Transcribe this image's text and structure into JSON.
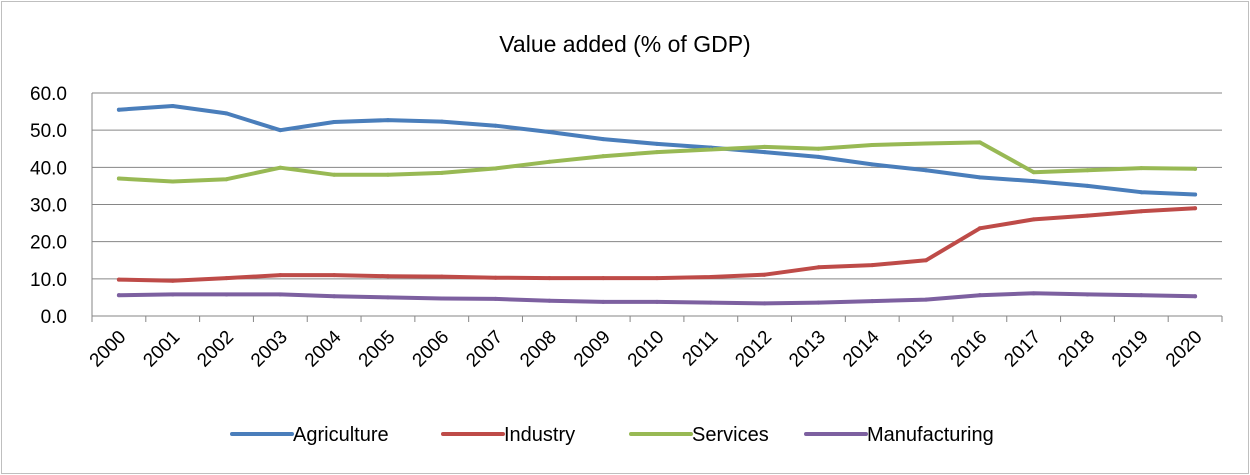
{
  "chart_data": {
    "type": "line",
    "title": "Value added (% of GDP)",
    "xlabel": "",
    "ylabel": "",
    "ylim": [
      0,
      60
    ],
    "yticks": [
      "0.0",
      "10.0",
      "20.0",
      "30.0",
      "40.0",
      "50.0",
      "60.0"
    ],
    "grid": true,
    "legend_position": "bottom",
    "categories": [
      "2000",
      "2001",
      "2002",
      "2003",
      "2004",
      "2005",
      "2006",
      "2007",
      "2008",
      "2009",
      "2010",
      "2011",
      "2012",
      "2013",
      "2014",
      "2015",
      "2016",
      "2017",
      "2018",
      "2019",
      "2020"
    ],
    "series": [
      {
        "name": "Agriculture",
        "color": "#4a7ebb",
        "values": [
          55.5,
          56.5,
          54.5,
          50.0,
          52.2,
          52.7,
          52.3,
          51.2,
          49.5,
          47.6,
          46.3,
          45.3,
          44.1,
          42.8,
          40.8,
          39.2,
          37.3,
          36.3,
          35.0,
          33.3,
          32.7
        ]
      },
      {
        "name": "Industry",
        "color": "#be4b48",
        "values": [
          9.8,
          9.5,
          10.2,
          11.0,
          11.0,
          10.7,
          10.6,
          10.3,
          10.2,
          10.2,
          10.2,
          10.5,
          11.1,
          13.1,
          13.7,
          15.0,
          23.6,
          26.0,
          27.0,
          28.2,
          29.0
        ]
      },
      {
        "name": "Services",
        "color": "#98b954",
        "values": [
          37.0,
          36.2,
          36.8,
          39.9,
          38.0,
          38.0,
          38.5,
          39.7,
          41.5,
          43.0,
          44.1,
          44.8,
          45.5,
          45.0,
          46.0,
          46.4,
          46.7,
          38.7,
          39.2,
          39.8,
          39.6
        ]
      },
      {
        "name": "Manufacturing",
        "color": "#7d60a0",
        "values": [
          5.6,
          5.8,
          5.8,
          5.8,
          5.3,
          5.0,
          4.7,
          4.6,
          4.1,
          3.8,
          3.8,
          3.6,
          3.4,
          3.6,
          4.0,
          4.4,
          5.6,
          6.1,
          5.8,
          5.6,
          5.3
        ]
      }
    ]
  }
}
